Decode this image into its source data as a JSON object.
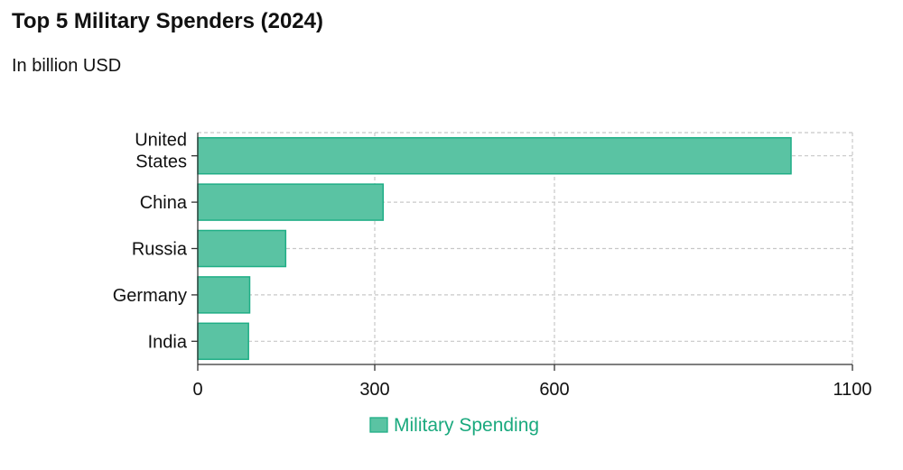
{
  "chart_data": {
    "type": "bar",
    "orientation": "horizontal",
    "title": "Top 5 Military Spenders (2024)",
    "subtitle": "In billion USD",
    "categories": [
      "United States",
      "China",
      "Russia",
      "Germany",
      "India"
    ],
    "series": [
      {
        "name": "Military Spending",
        "values": [
          997,
          314,
          149,
          88,
          86
        ],
        "color": "#5ac3a3",
        "stroke": "#1fae86"
      }
    ],
    "xticks": [
      0,
      300,
      600,
      1100
    ],
    "xlim": [
      0,
      1100
    ],
    "xlabel": "",
    "ylabel": "",
    "grid": true,
    "legend_position": "bottom",
    "legend_color": "#1aa97e"
  }
}
